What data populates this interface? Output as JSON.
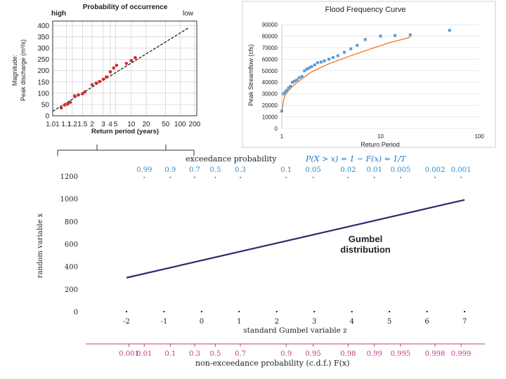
{
  "chart_data": [
    {
      "type": "scatter",
      "top_label": "Probability of occurrence",
      "top_left": "high",
      "top_right": "low",
      "ylabel": "Magnitude:\nPeak discharge (m³/s)",
      "ylabel_line1": "Magnitude:",
      "ylabel_line2": "Peak discharge (m³/s)",
      "xlabel": "Return period (years)",
      "x_ticks": [
        {
          "label": "1.01",
          "p": 0.99
        },
        {
          "label": "1.1",
          "p": 0.909
        },
        {
          "label": "1.2",
          "p": 0.833
        },
        {
          "label": "1.5",
          "p": 0.667
        },
        {
          "label": "2",
          "p": 0.5
        },
        {
          "label": "3",
          "p": 0.333
        },
        {
          "label": "4",
          "p": 0.25
        },
        {
          "label": "5",
          "p": 0.2
        },
        {
          "label": "10",
          "p": 0.1
        },
        {
          "label": "20",
          "p": 0.05
        },
        {
          "label": "50",
          "p": 0.02
        },
        {
          "label": "100",
          "p": 0.01
        },
        {
          "label": "200",
          "p": 0.005
        }
      ],
      "y_ticks": [
        0,
        50,
        100,
        150,
        200,
        250,
        300,
        350,
        400
      ],
      "ylim": [
        0,
        420
      ],
      "points": [
        {
          "T": 1.05,
          "Q": 35
        },
        {
          "T": 1.08,
          "Q": 48
        },
        {
          "T": 1.12,
          "Q": 52
        },
        {
          "T": 1.16,
          "Q": 60
        },
        {
          "T": 1.25,
          "Q": 88
        },
        {
          "T": 1.35,
          "Q": 92
        },
        {
          "T": 1.5,
          "Q": 98
        },
        {
          "T": 1.6,
          "Q": 106
        },
        {
          "T": 2.0,
          "Q": 138
        },
        {
          "T": 2.3,
          "Q": 145
        },
        {
          "T": 2.6,
          "Q": 152
        },
        {
          "T": 3.0,
          "Q": 162
        },
        {
          "T": 3.4,
          "Q": 172
        },
        {
          "T": 4.0,
          "Q": 195
        },
        {
          "T": 4.6,
          "Q": 212
        },
        {
          "T": 5.2,
          "Q": 224
        },
        {
          "T": 8.0,
          "Q": 232
        },
        {
          "T": 10.0,
          "Q": 245
        },
        {
          "T": 12.0,
          "Q": 258
        }
      ],
      "fit_line": [
        {
          "T": 1.01,
          "Q": 20
        },
        {
          "T": 150,
          "Q": 390
        }
      ]
    },
    {
      "type": "scatter",
      "title": "Flood Frequency Curve",
      "xlabel": "Return Period",
      "ylabel": "Peak Streamflow (cfs)",
      "x_scale": "log",
      "x_ticks": [
        1,
        10,
        100
      ],
      "xlim": [
        1,
        100
      ],
      "y_ticks": [
        0,
        10000,
        20000,
        30000,
        40000,
        50000,
        60000,
        70000,
        80000,
        90000
      ],
      "ylim": [
        0,
        90000
      ],
      "points": [
        {
          "x": 1.0,
          "y": 15000
        },
        {
          "x": 1.04,
          "y": 30000
        },
        {
          "x": 1.08,
          "y": 31500
        },
        {
          "x": 1.12,
          "y": 33000
        },
        {
          "x": 1.17,
          "y": 35000
        },
        {
          "x": 1.22,
          "y": 36500
        },
        {
          "x": 1.28,
          "y": 40000
        },
        {
          "x": 1.35,
          "y": 41000
        },
        {
          "x": 1.42,
          "y": 42000
        },
        {
          "x": 1.5,
          "y": 44000
        },
        {
          "x": 1.6,
          "y": 45000
        },
        {
          "x": 1.7,
          "y": 50000
        },
        {
          "x": 1.8,
          "y": 51500
        },
        {
          "x": 1.9,
          "y": 52500
        },
        {
          "x": 2.0,
          "y": 53500
        },
        {
          "x": 2.15,
          "y": 55000
        },
        {
          "x": 2.3,
          "y": 57000
        },
        {
          "x": 2.5,
          "y": 57500
        },
        {
          "x": 2.7,
          "y": 58500
        },
        {
          "x": 3.0,
          "y": 60000
        },
        {
          "x": 3.3,
          "y": 61500
        },
        {
          "x": 3.7,
          "y": 63000
        },
        {
          "x": 4.3,
          "y": 66000
        },
        {
          "x": 5.0,
          "y": 69000
        },
        {
          "x": 5.8,
          "y": 72000
        },
        {
          "x": 7.0,
          "y": 77000
        },
        {
          "x": 10.0,
          "y": 80000
        },
        {
          "x": 14.0,
          "y": 80500
        },
        {
          "x": 20.0,
          "y": 81000
        },
        {
          "x": 50.0,
          "y": 85000
        }
      ],
      "fit_curve": [
        {
          "x": 1.0,
          "y": 15000
        },
        {
          "x": 1.05,
          "y": 26000
        },
        {
          "x": 1.1,
          "y": 30000
        },
        {
          "x": 1.3,
          "y": 37000
        },
        {
          "x": 1.6,
          "y": 43000
        },
        {
          "x": 2.0,
          "y": 49000
        },
        {
          "x": 3.0,
          "y": 56000
        },
        {
          "x": 5.0,
          "y": 63000
        },
        {
          "x": 8.0,
          "y": 69000
        },
        {
          "x": 12.0,
          "y": 74000
        },
        {
          "x": 20.0,
          "y": 79000
        }
      ],
      "point_color": "#5b9bd5",
      "curve_color": "#ed7d31"
    },
    {
      "type": "line",
      "top_axis_label": "exceedance probability P(X > x) = 1 − F(x) = 1/T",
      "top_axis_prefix": "exceedance probability",
      "top_ticks": [
        {
          "label": "0.99",
          "z": -1.527
        },
        {
          "label": "0.9",
          "z": -0.834
        },
        {
          "label": "0.7",
          "z": -0.186
        },
        {
          "label": "0.5",
          "z": 0.367
        },
        {
          "label": "0.3",
          "z": 1.031
        },
        {
          "label": "0.1",
          "z": 2.25
        },
        {
          "label": "0.05",
          "z": 2.97
        },
        {
          "label": "0.02",
          "z": 3.902
        },
        {
          "label": "0.01",
          "z": 4.6
        },
        {
          "label": "0.005",
          "z": 5.296
        },
        {
          "label": "0.002",
          "z": 6.214
        },
        {
          "label": "0.001",
          "z": 6.907
        }
      ],
      "ylabel": "random variable x",
      "xlabel": "standard Gumbel variable z",
      "x_ticks": [
        -2,
        -1,
        0,
        1,
        2,
        3,
        4,
        5,
        6,
        7
      ],
      "xlim": [
        -2,
        7
      ],
      "y_ticks": [
        0,
        200,
        400,
        600,
        800,
        1000,
        1200
      ],
      "ylim": [
        0,
        1200
      ],
      "annotation_line1": "Gumbel",
      "annotation_line2": "distribution",
      "series": [
        {
          "x": [
            -2,
            7
          ],
          "y": [
            300,
            990
          ]
        }
      ],
      "line_color": "#2e2a6e",
      "bottom_axis_label": "non-exceedance probability (c.d.f.) F(x)",
      "bottom_ticks": [
        {
          "label": "0.001",
          "z": -1.933
        },
        {
          "label": "0.01",
          "z": -1.527
        },
        {
          "label": "0.1",
          "z": -0.834
        },
        {
          "label": "0.3",
          "z": -0.186
        },
        {
          "label": "0.5",
          "z": 0.367
        },
        {
          "label": "0.7",
          "z": 1.031
        },
        {
          "label": "0.9",
          "z": 2.25
        },
        {
          "label": "0.95",
          "z": 2.97
        },
        {
          "label": "0.98",
          "z": 3.902
        },
        {
          "label": "0.99",
          "z": 4.6
        },
        {
          "label": "0.995",
          "z": 5.296
        },
        {
          "label": "0.998",
          "z": 6.214
        },
        {
          "label": "0.999",
          "z": 6.907
        }
      ],
      "top_tick_color": "#2a8fd0",
      "bottom_tick_color": "#c03a8a"
    }
  ]
}
